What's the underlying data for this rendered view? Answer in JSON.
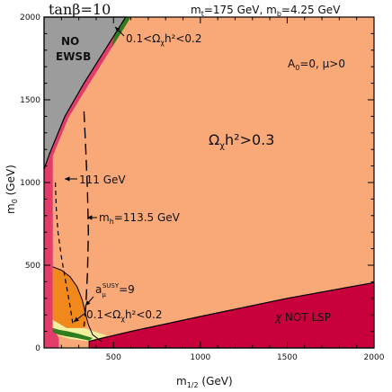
{
  "chart_data": {
    "type": "area",
    "title": "tanβ=10",
    "header_right": "m_t=175 GeV, m_b=4.25 GeV",
    "params": "A0=0, μ>0",
    "xlabel": "m1/2 (GeV)",
    "ylabel": "m0 (GeV)",
    "xlim": [
      100,
      2000
    ],
    "ylim": [
      0,
      2000
    ],
    "xticks": [
      500,
      1000,
      1500,
      2000
    ],
    "yticks": [
      0,
      500,
      1000,
      1500,
      2000
    ],
    "xtick_labels": [
      "500",
      "1000",
      "1500",
      "2000"
    ],
    "ytick_labels": [
      "0",
      "500",
      "1000",
      "1500",
      "2000"
    ],
    "colors": {
      "background_region": "#f9a878",
      "no_ewsb": "#9c9c9c",
      "chi_not_lsp": "#c8003c",
      "pink_band": "#e23c6a",
      "g2_region": "#f0881c",
      "dm_band": "#2e7d1e",
      "yellow_band": "#f2f0a0"
    },
    "regions": [
      {
        "name": "no_ewsb",
        "label_line1": "NO",
        "label_line2": "EWSB",
        "points": [
          [
            100,
            1080
          ],
          [
            130,
            1170
          ],
          [
            220,
            1400
          ],
          [
            330,
            1600
          ],
          [
            480,
            1850
          ],
          [
            570,
            2000
          ],
          [
            100,
            2000
          ]
        ]
      },
      {
        "name": "chi_not_lsp",
        "label": "χ NOT LSP",
        "points": [
          [
            360,
            40
          ],
          [
            600,
            100
          ],
          [
            1000,
            190
          ],
          [
            1500,
            300
          ],
          [
            2000,
            395
          ],
          [
            2000,
            0
          ],
          [
            360,
            0
          ]
        ]
      },
      {
        "name": "pink_band",
        "points": [
          [
            100,
            0
          ],
          [
            100,
            1080
          ],
          [
            130,
            1170
          ],
          [
            220,
            1400
          ],
          [
            330,
            1600
          ],
          [
            480,
            1850
          ],
          [
            570,
            2000
          ],
          [
            600,
            2000
          ],
          [
            505,
            1840
          ],
          [
            350,
            1580
          ],
          [
            240,
            1390
          ],
          [
            150,
            1160
          ],
          [
            150,
            120
          ],
          [
            185,
            60
          ],
          [
            185,
            0
          ]
        ]
      }
    ],
    "annotations": [
      {
        "name": "omega_high",
        "text": "Ωχh²>0.3"
      },
      {
        "name": "dm_top",
        "text": "0.1<Ωχh²<0.2"
      },
      {
        "name": "dm_bottom",
        "text": "0.1<Ωχh²<0.2"
      },
      {
        "name": "g2_label",
        "text": "aμSUSY=9"
      },
      {
        "name": "mh111",
        "text": "111 GeV"
      },
      {
        "name": "mh1135",
        "text": "mh=113.5 GeV"
      }
    ],
    "series": [
      {
        "name": "mh=111 GeV",
        "style": "short-dash",
        "x": [
          165,
          170,
          180,
          200,
          225,
          250,
          265
        ],
        "y": [
          1000,
          850,
          700,
          550,
          400,
          250,
          150
        ]
      },
      {
        "name": "mh=113.5 GeV",
        "style": "long-dash",
        "x": [
          330,
          340,
          350,
          355,
          350,
          340,
          330
        ],
        "y": [
          1430,
          1200,
          950,
          700,
          450,
          250,
          130
        ]
      }
    ]
  },
  "labels": {
    "title_main": "tanβ=10",
    "header_mt": "m",
    "header_mt_sub": "t",
    "header_mt_val": "=175 GeV,",
    "header_mb": " m",
    "header_mb_sub": "b",
    "header_mb_val": "=4.25 GeV",
    "a0_text": "A",
    "a0_sub": "0",
    "a0_val": "=0,  μ>0",
    "no_1": "NO",
    "no_2": "EWSB",
    "omega_high_a": "Ω",
    "omega_high_b": "χ",
    "omega_high_c": "h²>0.3",
    "dm_top_a": "0.1<Ω",
    "dm_top_b": "χ",
    "dm_top_c": "h²<0.2",
    "dm_bot_a": "0.1<Ω",
    "dm_bot_b": "χ",
    "dm_bot_c": "h²<0.2",
    "mh111": "111 GeV",
    "mh113_a": "m",
    "mh113_b": "h",
    "mh113_c": "=113.5 GeV",
    "g2_a": "a",
    "g2_sub": "μ",
    "g2_sup": "SUSY",
    "g2_c": "=9",
    "notlsp_a": "χ",
    "notlsp_b": " NOT LSP",
    "xlabel_a": "m",
    "xlabel_sub": "1/2",
    "xlabel_c": " (GeV)",
    "ylabel_a": "m",
    "ylabel_sub": "0",
    "ylabel_c": " (GeV)"
  }
}
